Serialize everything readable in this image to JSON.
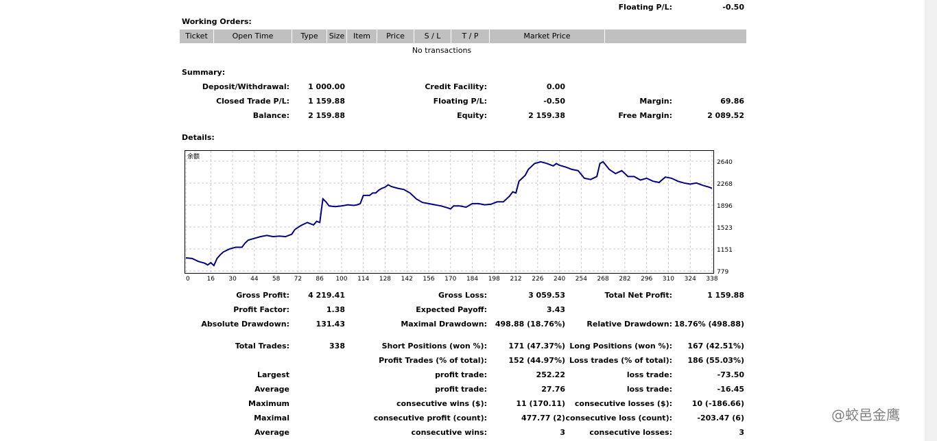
{
  "top": {
    "floating_label": "Floating P/L:",
    "floating_value": "-0.50"
  },
  "working_orders": {
    "title": "Working Orders:",
    "columns": [
      "Ticket",
      "Open Time",
      "Type",
      "Size",
      "Item",
      "Price",
      "S / L",
      "T / P",
      "Market Price",
      ""
    ],
    "empty_text": "No transactions"
  },
  "summary": {
    "title": "Summary:",
    "deposit_label": "Deposit/Withdrawal:",
    "deposit_value": "1 000.00",
    "credit_label": "Credit Facility:",
    "credit_value": "0.00",
    "closed_label": "Closed Trade P/L:",
    "closed_value": "1 159.88",
    "floating_label": "Floating P/L:",
    "floating_value": "-0.50",
    "margin_label": "Margin:",
    "margin_value": "69.86",
    "balance_label": "Balance:",
    "balance_value": "2 159.88",
    "equity_label": "Equity:",
    "equity_value": "2 159.38",
    "free_margin_label": "Free Margin:",
    "free_margin_value": "2 089.52"
  },
  "details": {
    "title": "Details:"
  },
  "chart_data": {
    "type": "line",
    "title": "余额",
    "x_ticks": [
      0,
      16,
      30,
      44,
      58,
      72,
      86,
      100,
      114,
      128,
      142,
      156,
      170,
      184,
      198,
      212,
      226,
      240,
      254,
      268,
      282,
      296,
      310,
      324,
      338
    ],
    "y_ticks": [
      779,
      1151,
      1523,
      1896,
      2268,
      2640
    ],
    "xlim": [
      0,
      338
    ],
    "ylim": [
      779,
      2800
    ],
    "grid": true,
    "series": [
      {
        "x": [
          0,
          4,
          8,
          12,
          14,
          16,
          18,
          20,
          22,
          24,
          28,
          32,
          36,
          38,
          40,
          44,
          48,
          52,
          56,
          60,
          64,
          68,
          70,
          74,
          78,
          82,
          84,
          86,
          87,
          88,
          90,
          92,
          96,
          100,
          104,
          108,
          110,
          112,
          114,
          118,
          120,
          122,
          124,
          126,
          128,
          130,
          132,
          136,
          140,
          144,
          148,
          152,
          156,
          160,
          164,
          168,
          170,
          172,
          176,
          180,
          184,
          188,
          192,
          196,
          200,
          204,
          208,
          210,
          212,
          214,
          216,
          218,
          220,
          222,
          224,
          228,
          232,
          236,
          238,
          240,
          244,
          248,
          252,
          256,
          260,
          264,
          266,
          268,
          272,
          276,
          280,
          284,
          288,
          292,
          296,
          300,
          304,
          308,
          312,
          316,
          320,
          324,
          328,
          332,
          336,
          338
        ],
        "y": [
          1000,
          990,
          940,
          910,
          880,
          920,
          870,
          990,
          1050,
          1100,
          1150,
          1180,
          1180,
          1250,
          1300,
          1330,
          1360,
          1380,
          1360,
          1370,
          1360,
          1400,
          1480,
          1550,
          1600,
          1560,
          1620,
          1600,
          1800,
          2000,
          1950,
          1880,
          1870,
          1880,
          1900,
          1890,
          1900,
          1920,
          2060,
          2060,
          2100,
          2100,
          2150,
          2180,
          2200,
          2240,
          2210,
          2180,
          2160,
          2100,
          2000,
          1940,
          1920,
          1900,
          1880,
          1850,
          1830,
          1880,
          1880,
          1860,
          1920,
          1920,
          1900,
          1910,
          1950,
          1950,
          2050,
          2120,
          2100,
          2300,
          2350,
          2400,
          2500,
          2550,
          2600,
          2630,
          2600,
          2560,
          2600,
          2570,
          2540,
          2500,
          2480,
          2350,
          2330,
          2380,
          2600,
          2630,
          2500,
          2430,
          2480,
          2380,
          2380,
          2320,
          2350,
          2300,
          2280,
          2370,
          2350,
          2300,
          2270,
          2250,
          2270,
          2230,
          2200,
          2180
        ]
      }
    ]
  },
  "stats": {
    "gross_profit_label": "Gross Profit:",
    "gross_profit_value": "4 219.41",
    "gross_loss_label": "Gross Loss:",
    "gross_loss_value": "3 059.53",
    "total_net_label": "Total Net Profit:",
    "total_net_value": "1 159.88",
    "profit_factor_label": "Profit Factor:",
    "profit_factor_value": "1.38",
    "expected_payoff_label": "Expected Payoff:",
    "expected_payoff_value": "3.43",
    "abs_dd_label": "Absolute Drawdown:",
    "abs_dd_value": "131.43",
    "max_dd_label": "Maximal Drawdown:",
    "max_dd_value": "498.88 (18.76%)",
    "rel_dd_label": "Relative Drawdown:",
    "rel_dd_value": "18.76% (498.88)",
    "total_trades_label": "Total Trades:",
    "total_trades_value": "338",
    "short_label": "Short Positions (won %):",
    "short_value": "171 (47.37%)",
    "long_label": "Long Positions (won %):",
    "long_value": "167 (42.51%)",
    "profit_trades_label": "Profit Trades (% of total):",
    "profit_trades_value": "152 (44.97%)",
    "loss_trades_label": "Loss trades (% of total):",
    "loss_trades_value": "186 (55.03%)",
    "largest_label": "Largest",
    "largest_profit_label": "profit trade:",
    "largest_profit_value": "252.22",
    "largest_loss_label": "loss trade:",
    "largest_loss_value": "-73.50",
    "average_label": "Average",
    "average_profit_label": "profit trade:",
    "average_profit_value": "27.76",
    "average_loss_label": "loss trade:",
    "average_loss_value": "-16.45",
    "maximum_label": "Maximum",
    "max_wins_label": "consecutive wins ($):",
    "max_wins_value": "11 (170.11)",
    "max_losses_label": "consecutive losses ($):",
    "max_losses_value": "10 (-186.66)",
    "maximal_label": "Maximal",
    "maximal_profit_label": "consecutive profit (count):",
    "maximal_profit_value": "477.77 (2)",
    "maximal_loss_label": "consecutive loss (count):",
    "maximal_loss_value": "-203.47 (6)",
    "average2_label": "Average",
    "avg_cons_wins_label": "consecutive wins:",
    "avg_cons_wins_value": "3",
    "avg_cons_losses_label": "consecutive losses:",
    "avg_cons_losses_value": "3"
  },
  "watermark": "@蛟邑金鹰"
}
